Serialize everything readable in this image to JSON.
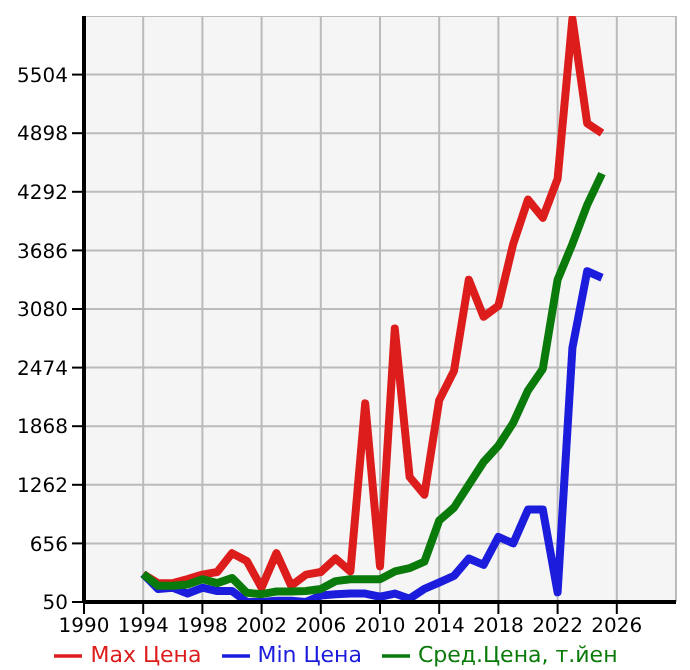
{
  "chart_data": {
    "type": "line",
    "x": [
      1994,
      1995,
      1996,
      1997,
      1998,
      1999,
      2000,
      2001,
      2002,
      2003,
      2004,
      2005,
      2006,
      2007,
      2008,
      2009,
      2010,
      2011,
      2012,
      2013,
      2014,
      2015,
      2016,
      2017,
      2018,
      2019,
      2020,
      2021,
      2022,
      2023,
      2024,
      2025
    ],
    "series": [
      {
        "name": "Max Цена",
        "color": "#dd1c1c",
        "values": [
          339,
          245,
          245,
          286,
          333,
          360,
          555,
          474,
          198,
          555,
          218,
          333,
          360,
          501,
          366,
          2104,
          420,
          2878,
          1343,
          1161,
          2137,
          2440,
          3383,
          3000,
          3114,
          3753,
          4211,
          4023,
          4427,
          6080,
          5000,
          4898
        ]
      },
      {
        "name": "Min Цена",
        "color": "#1c1cdd",
        "values": [
          339,
          185,
          198,
          137,
          198,
          164,
          164,
          50,
          50,
          63,
          63,
          50,
          117,
          131,
          137,
          137,
          104,
          137,
          84,
          185,
          252,
          320,
          500,
          434,
          723,
          656,
          1006,
          1006,
          151,
          2676,
          3470,
          3403
        ]
      },
      {
        "name": "Сред.Цена, т.йен",
        "color": "#0a7a0a",
        "values": [
          339,
          218,
          218,
          230,
          286,
          245,
          299,
          145,
          131,
          158,
          158,
          164,
          185,
          266,
          286,
          286,
          286,
          366,
          400,
          468,
          892,
          1026,
          1262,
          1498,
          1666,
          1902,
          2238,
          2460,
          3383,
          3753,
          4157,
          4480
        ]
      }
    ],
    "xlim": [
      1990,
      2030
    ],
    "xticks": [
      1990,
      1994,
      1998,
      2002,
      2006,
      2010,
      2014,
      2018,
      2022,
      2026
    ],
    "ylim": [
      50,
      6110
    ],
    "yticks": [
      50,
      656,
      1262,
      1868,
      2474,
      3080,
      3686,
      4292,
      4898,
      5504
    ],
    "grid": true,
    "legend": "bottom",
    "marker": "none",
    "line_style": "solid"
  }
}
